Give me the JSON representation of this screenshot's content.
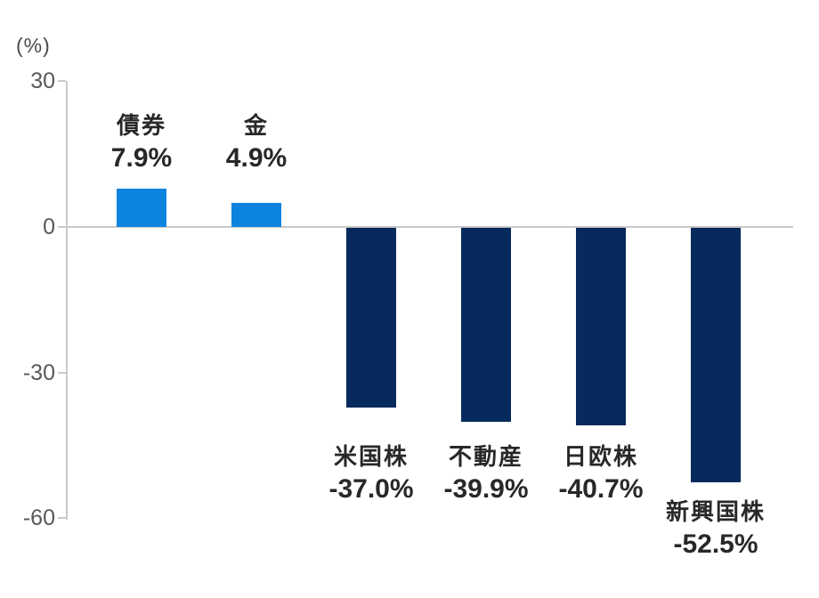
{
  "chart_data": {
    "type": "bar",
    "title": "",
    "xlabel": "",
    "ylabel": "",
    "unit_label": "(%)",
    "categories": [
      "債券",
      "金",
      "米国株",
      "不動産",
      "日欧株",
      "新興国株"
    ],
    "values": [
      7.9,
      4.9,
      -37.0,
      -39.9,
      -40.7,
      -52.5
    ],
    "value_labels": [
      "7.9%",
      "4.9%",
      "-37.0%",
      "-39.9%",
      "-40.7%",
      "-52.5%"
    ],
    "yticks": [
      30,
      0,
      -30,
      -60
    ],
    "ytick_labels": [
      "30",
      "0",
      "-30",
      "-60"
    ],
    "ylim": [
      -60,
      30
    ],
    "grid": false,
    "legend_position": "none",
    "colors": {
      "positive_bar": "#0c83df",
      "negative_bar": "#072a5c",
      "axis_line": "#c9c9c9",
      "tick_text": "#595959",
      "label_text": "#282828",
      "background": "#ffffff"
    }
  }
}
